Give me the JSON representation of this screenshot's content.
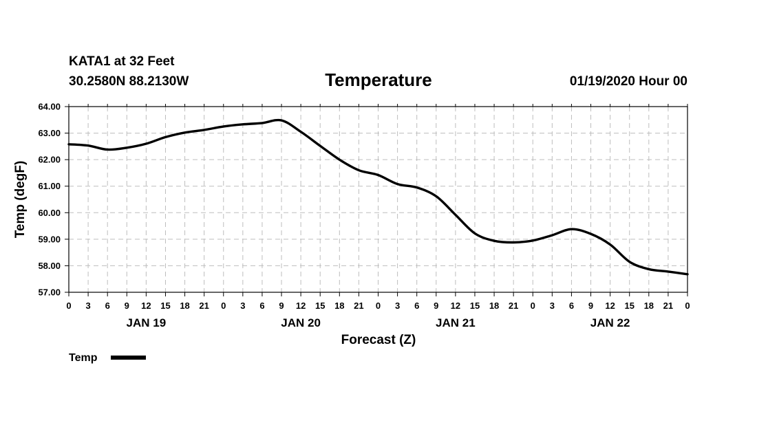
{
  "station": {
    "name": "KATA1 at 32 Feet",
    "coords": "30.2580N 88.2130W",
    "datetime": "01/19/2020 Hour 00"
  },
  "chart_data": {
    "type": "line",
    "title": "Temperature",
    "xlabel": "Forecast (Z)",
    "ylabel": "Temp (degF)",
    "ylim": [
      57,
      64
    ],
    "xlim": [
      0,
      96
    ],
    "grid": true,
    "yticks": [
      57,
      58,
      59,
      60,
      61,
      62,
      63,
      64
    ],
    "ytick_labels": [
      "57.00",
      "58.00",
      "59.00",
      "60.00",
      "61.00",
      "62.00",
      "63.00",
      "64.00"
    ],
    "xtick_hours": [
      0,
      3,
      6,
      9,
      12,
      15,
      18,
      21,
      24,
      27,
      30,
      33,
      36,
      39,
      42,
      45,
      48,
      51,
      54,
      57,
      60,
      63,
      66,
      69,
      72,
      75,
      78,
      81,
      84,
      87,
      90,
      93,
      96
    ],
    "xtick_labels": [
      "0",
      "3",
      "6",
      "9",
      "12",
      "15",
      "18",
      "21",
      "0",
      "3",
      "6",
      "9",
      "12",
      "15",
      "18",
      "21",
      "0",
      "3",
      "6",
      "9",
      "12",
      "15",
      "18",
      "21",
      "0",
      "3",
      "6",
      "9",
      "12",
      "15",
      "18",
      "21",
      "0"
    ],
    "day_labels": [
      {
        "label": "JAN 19",
        "hour": 12
      },
      {
        "label": "JAN 20",
        "hour": 36
      },
      {
        "label": "JAN 21",
        "hour": 60
      },
      {
        "label": "JAN 22",
        "hour": 84
      }
    ],
    "legend": {
      "label": "Temp",
      "position": "bottom-left"
    },
    "series": [
      {
        "name": "Temp",
        "color": "#000000",
        "x": [
          0,
          3,
          6,
          9,
          12,
          15,
          18,
          21,
          24,
          27,
          30,
          33,
          36,
          39,
          42,
          45,
          48,
          51,
          54,
          57,
          60,
          63,
          66,
          69,
          72,
          75,
          78,
          81,
          84,
          87,
          90,
          93,
          96
        ],
        "values": [
          62.58,
          62.53,
          62.38,
          62.45,
          62.6,
          62.85,
          63.02,
          63.12,
          63.25,
          63.33,
          63.38,
          63.48,
          63.05,
          62.52,
          62.0,
          61.6,
          61.42,
          61.08,
          60.95,
          60.62,
          59.92,
          59.22,
          58.94,
          58.88,
          58.95,
          59.15,
          59.38,
          59.2,
          58.8,
          58.15,
          57.87,
          57.78,
          57.68
        ]
      }
    ]
  }
}
